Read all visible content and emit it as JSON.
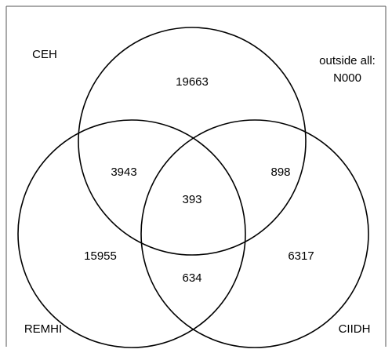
{
  "sets": [
    {
      "label": "CEH"
    },
    {
      "label": "REMHI"
    },
    {
      "label": "CIIDH"
    }
  ],
  "regions": {
    "ceh_only": 19663,
    "ceh_remhi": 3943,
    "ceh_ciidh": 898,
    "all_three": 393,
    "remhi_only": 15955,
    "ciidh_only": 6317,
    "remhi_ciidh": 634
  },
  "outside": {
    "label": "outside all:",
    "value": "N000"
  }
}
